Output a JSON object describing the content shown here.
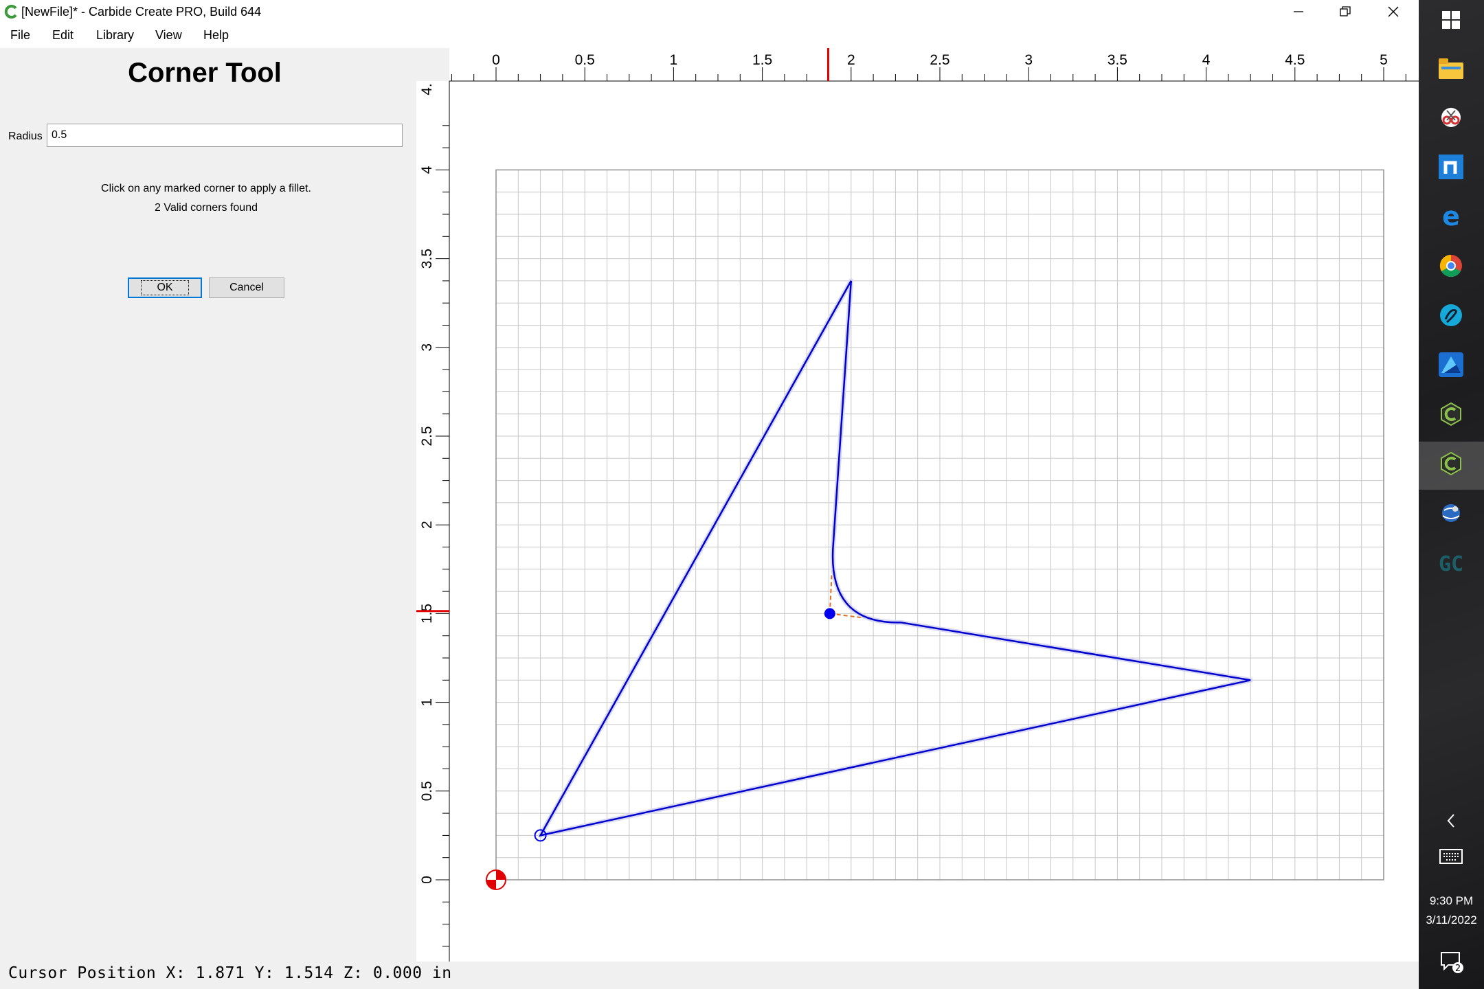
{
  "window": {
    "title": "[NewFile]* - Carbide Create PRO, Build 644"
  },
  "menu": [
    "File",
    "Edit",
    "Library",
    "View",
    "Help"
  ],
  "panel": {
    "title": "Corner Tool",
    "radius_label": "Radius",
    "radius_value": "0.5",
    "hint_line1": "Click on any marked corner to apply a fillet.",
    "hint_line2": "2 Valid corners found",
    "ok_label": "OK",
    "cancel_label": "Cancel"
  },
  "status": {
    "cursor_text": "Cursor Position X: 1.871 Y: 1.514 Z: 0.000 in"
  },
  "cursor": {
    "x": 1.871,
    "y": 1.514
  },
  "rulers": {
    "x_labels": [
      "0",
      "0.5",
      "1",
      "1.5",
      "2",
      "2.5",
      "3",
      "3.5",
      "4",
      "4.5",
      "5"
    ],
    "y_labels": [
      "0",
      "0.5",
      "1",
      "1.5",
      "2",
      "2.5",
      "3",
      "3.5",
      "4",
      "4."
    ]
  },
  "geometry": {
    "units": "in",
    "shape_points": [
      [
        0.25,
        0.25
      ],
      [
        2.0,
        3.375
      ],
      [
        1.9,
        1.9
      ],
      [
        2.28,
        1.45
      ],
      [
        4.25,
        1.125
      ],
      [
        0.25,
        0.25
      ]
    ],
    "marked_corners": [
      [
        1.88,
        1.5
      ],
      [
        0.25,
        0.25
      ]
    ]
  },
  "taskbar": {
    "time": "9:30 PM",
    "date": "3/11/2022",
    "notification_count": "2"
  },
  "colors": {
    "shape": "#0000cc",
    "fillet_guide": "#e07020",
    "ruler_marker": "#e00000",
    "grid": "#c8c8c8"
  }
}
